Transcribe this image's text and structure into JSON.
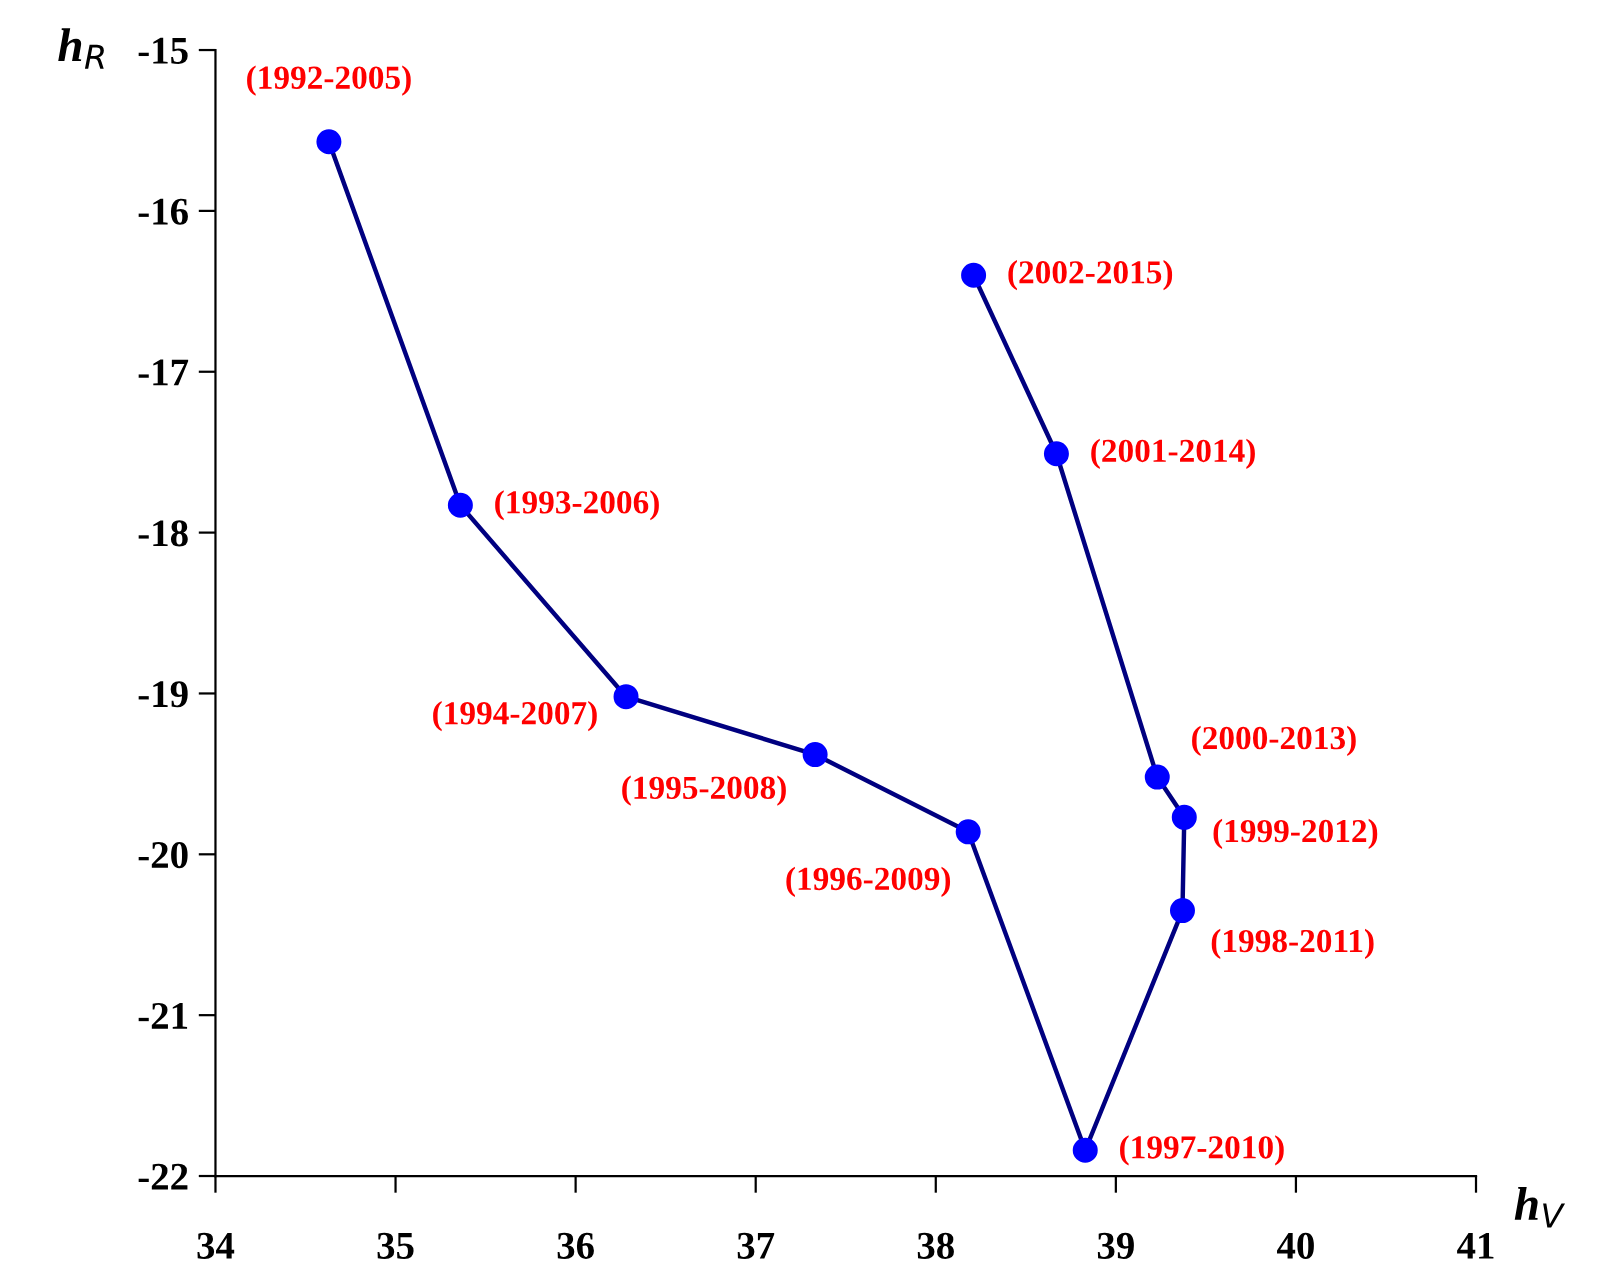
{
  "chart_data": {
    "type": "line",
    "xlabel": "h$_{V}$",
    "ylabel": "h$_{R}$",
    "x": [
      34.63,
      35.36,
      36.28,
      37.33,
      38.18,
      38.83,
      39.37,
      39.38,
      39.23,
      38.67,
      38.21
    ],
    "series": [
      {
        "color": "#0000ff",
        "values": [
          -15.57,
          -17.83,
          -19.02,
          -19.38,
          -19.86,
          -21.84,
          -20.35,
          -19.77,
          -19.52,
          -17.51,
          -16.4
        ]
      }
    ],
    "annotations": [
      {
        "text": "(1992-2005)",
        "x": 34.63,
        "y": -15.57
      },
      {
        "text": "(1993-2006)",
        "x": 35.36,
        "y": -17.83
      },
      {
        "text": "(1994-2007)",
        "x": 36.28,
        "y": -19.02
      },
      {
        "text": "(1995-2008)",
        "x": 37.33,
        "y": -19.38
      },
      {
        "text": "(1996-2009)",
        "x": 38.18,
        "y": -19.86
      },
      {
        "text": "(1997-2010)",
        "x": 38.83,
        "y": -21.84
      },
      {
        "text": "(1998-2011)",
        "x": 39.37,
        "y": -20.35
      },
      {
        "text": "(1999-2012)",
        "x": 39.38,
        "y": -19.77
      },
      {
        "text": "(2000-2013)",
        "x": 39.23,
        "y": -19.52
      },
      {
        "text": "(2001-2014)",
        "x": 38.67,
        "y": -17.51
      },
      {
        "text": "(2002-2015)",
        "x": 38.21,
        "y": -16.4
      }
    ],
    "xlim": [
      34,
      41
    ],
    "xticks": [
      34,
      35,
      36,
      37,
      38,
      39,
      40,
      41
    ],
    "ylim": [
      -22,
      -15
    ],
    "yticks": [
      -22,
      -21,
      -20,
      -19,
      -18,
      -17,
      -16,
      -15
    ],
    "grid": false,
    "legend": false,
    "marker": "circle",
    "line_style": "solid"
  }
}
